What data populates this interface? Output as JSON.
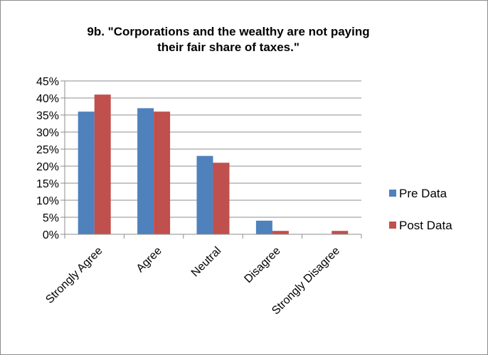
{
  "chart_data": {
    "type": "bar",
    "title_lines": [
      "9b. \"Corporations and the wealthy are not paying",
      "their fair share of taxes.\""
    ],
    "categories": [
      "Strongly Agree",
      "Agree",
      "Neutral",
      "Disagree",
      "Strongly Disagree"
    ],
    "series": [
      {
        "name": "Pre Data",
        "values": [
          36,
          37,
          23,
          4,
          0
        ],
        "color": "#4f81bd"
      },
      {
        "name": "Post Data",
        "values": [
          41,
          36,
          21,
          1,
          1
        ],
        "color": "#c0504d"
      }
    ],
    "ylim": [
      0,
      45
    ],
    "y_ticks": [
      0,
      5,
      10,
      15,
      20,
      25,
      30,
      35,
      40,
      45
    ],
    "y_tick_labels": [
      "0%",
      "5%",
      "10%",
      "15%",
      "20%",
      "25%",
      "30%",
      "35%",
      "40%",
      "45%"
    ],
    "grid": true,
    "legend_position": "right"
  }
}
